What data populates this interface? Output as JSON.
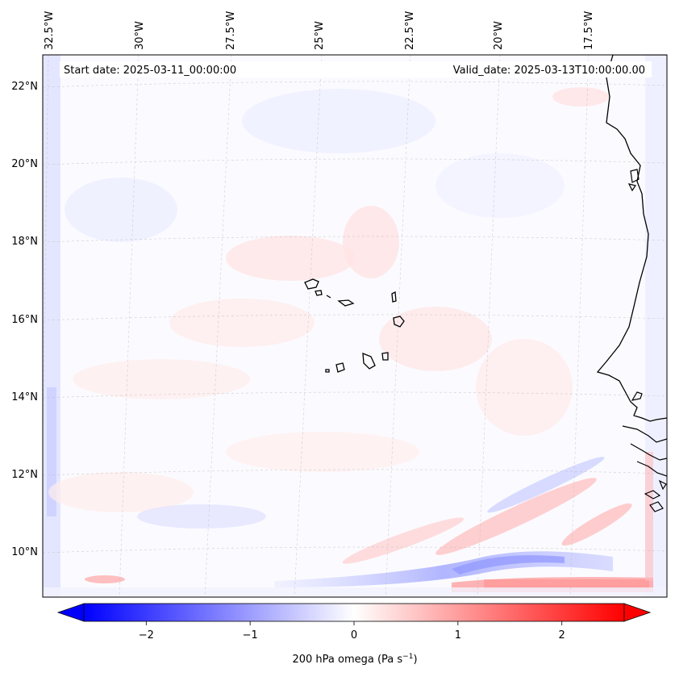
{
  "header": {
    "start_date": "Start date: 2025-03-11_00:00:00",
    "valid_date": "Valid_date: 2025-03-13T10:00:00.00"
  },
  "axes": {
    "lon_labels": [
      "32.5°W",
      "30°W",
      "27.5°W",
      "25°W",
      "22.5°W",
      "20°W",
      "17.5°W"
    ],
    "lat_labels": [
      "22°N",
      "20°N",
      "18°N",
      "16°N",
      "14°N",
      "12°N",
      "10°N"
    ]
  },
  "colorbar": {
    "label_main": "200 hPa omega (Pa s",
    "label_exp": "−1",
    "label_tail": ")",
    "ticks": [
      "−2",
      "−1",
      "0",
      "1",
      "2"
    ],
    "tick_values": [
      -2,
      -1,
      0,
      1,
      2
    ],
    "range": [
      -2.6,
      2.6
    ],
    "colors": {
      "negative": "#0000ff",
      "zero": "#ffffff",
      "positive": "#ff0000"
    }
  },
  "chart_data": {
    "type": "heatmap",
    "title": "",
    "variable": "200 hPa omega",
    "units": "Pa s−1",
    "lon_range": [
      -33,
      -16
    ],
    "lat_range": [
      9,
      22.8
    ],
    "features": [
      "Cape Verde islands",
      "West African coastline (Senegal, Gambia, Guinea-Bissau)"
    ]
  }
}
